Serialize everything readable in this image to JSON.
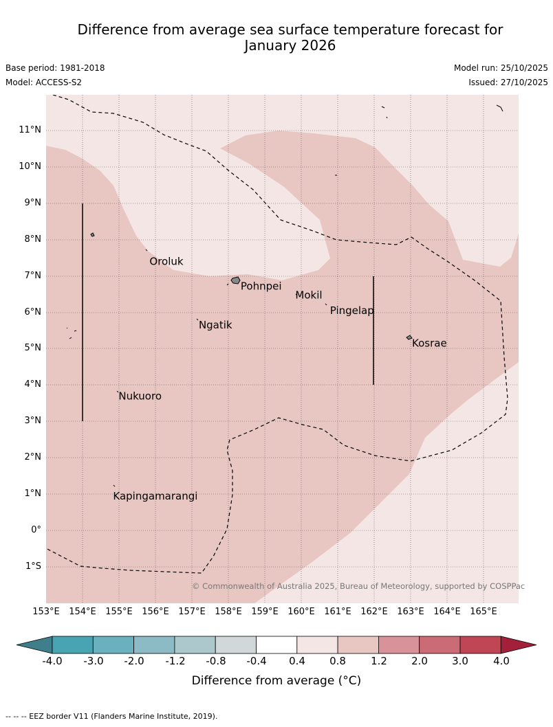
{
  "title_line1": "Difference from average sea surface temperature forecast for",
  "title_line2": "January 2026",
  "base_period": "Base period: 1981-2018",
  "model": "Model: ACCESS-S2",
  "model_run": "Model run: 25/10/2025",
  "issued": "Issued: 27/10/2025",
  "copyright": "© Commonwealth of Australia 2025, Bureau of Meteorology, supported by COSPPac",
  "places": [
    {
      "name": "Oroluk",
      "lon": 155.8,
      "lat": 7.55
    },
    {
      "name": "Pohnpei",
      "lon": 158.3,
      "lat": 6.87
    },
    {
      "name": "Mokil",
      "lon": 159.8,
      "lat": 6.63
    },
    {
      "name": "Pingelap",
      "lon": 160.75,
      "lat": 6.2
    },
    {
      "name": "Ngatik",
      "lon": 157.15,
      "lat": 5.8
    },
    {
      "name": "Kosrae",
      "lon": 163.0,
      "lat": 5.3
    },
    {
      "name": "Nukuoro",
      "lon": 154.95,
      "lat": 3.85
    },
    {
      "name": "Kapingamarangi",
      "lon": 154.8,
      "lat": 1.1
    }
  ],
  "lat_ticks": [
    "11°N",
    "10°N",
    "9°N",
    "8°N",
    "7°N",
    "6°N",
    "5°N",
    "4°N",
    "3°N",
    "2°N",
    "1°N",
    "0°",
    "1°S"
  ],
  "lon_ticks": [
    "153°E",
    "154°E",
    "155°E",
    "156°E",
    "157°E",
    "158°E",
    "159°E",
    "160°E",
    "161°E",
    "162°E",
    "163°E",
    "164°E",
    "165°E"
  ],
  "colorbar": {
    "ticks": [
      "-4.0",
      "-3.0",
      "-2.0",
      "-1.2",
      "-0.8",
      "-0.4",
      "0.4",
      "0.8",
      "1.2",
      "2.0",
      "3.0",
      "4.0"
    ],
    "colors": [
      "#3f7f8c",
      "#48a3b3",
      "#6ab0bf",
      "#8cbac5",
      "#acc8cc",
      "#d0d8da",
      "#ffffff",
      "#f4e6e5",
      "#e8c7c3",
      "#d8939a",
      "#cb6b76",
      "#c04656",
      "#a3203b"
    ],
    "label": "Difference from average (°C)"
  },
  "footnote": "--  --  -- EEZ border V11 (Flanders Marine Institute, 2019)."
}
